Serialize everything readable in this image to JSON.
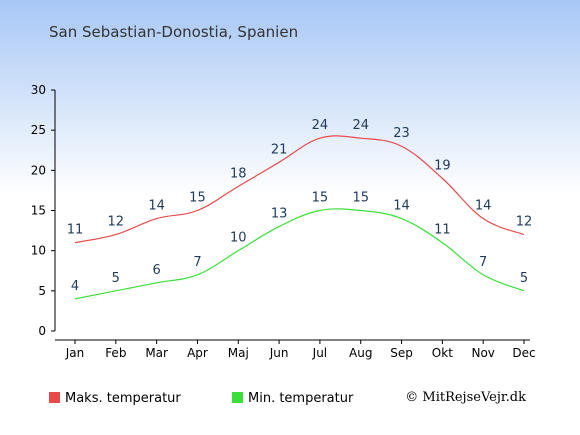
{
  "colors": {
    "background_top": "#a7c7f5",
    "background_bottom": "#ffffff",
    "max_series": "#e84a4a",
    "min_series": "#3ae03a",
    "axis": "#000000",
    "data_label": "#1f3a5a"
  },
  "credit": "© MitRejseVejr.dk",
  "chart_data": {
    "type": "line",
    "title": "San Sebastian-Donostia, Spanien",
    "xlabel": "",
    "ylabel": "",
    "categories": [
      "Jan",
      "Feb",
      "Mar",
      "Apr",
      "Maj",
      "Jun",
      "Jul",
      "Aug",
      "Sep",
      "Okt",
      "Nov",
      "Dec"
    ],
    "ylim": [
      0,
      30
    ],
    "yticks": [
      0,
      5,
      10,
      15,
      20,
      25,
      30
    ],
    "grid": false,
    "legend_position": "bottom",
    "series": [
      {
        "name": "Maks. temperatur",
        "color": "#e84a4a",
        "values": [
          11,
          12,
          14,
          15,
          18,
          21,
          24,
          24,
          23,
          19,
          14,
          12
        ]
      },
      {
        "name": "Min. temperatur",
        "color": "#3ae03a",
        "values": [
          4,
          5,
          6,
          7,
          10,
          13,
          15,
          15,
          14,
          11,
          7,
          5
        ]
      }
    ]
  }
}
